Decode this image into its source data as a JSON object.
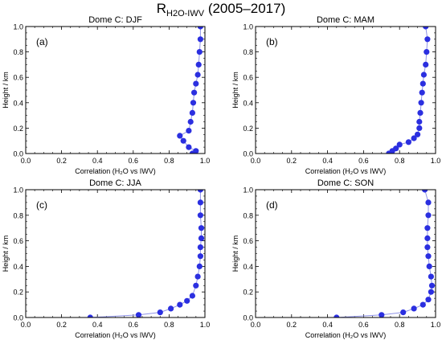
{
  "figure": {
    "title_main": "R",
    "title_sub": "H2O-IWV",
    "title_rest": " (2005–2017)"
  },
  "colors": {
    "marker": "#2b2fe0",
    "line": "#8f93e8",
    "axis": "#000000"
  },
  "chart_data": [
    {
      "type": "scatter",
      "title": "Dome C: DJF",
      "panel_label": "(a)",
      "xlabel": "Correlation (H₂O vs IWV)",
      "ylabel": "Height / km",
      "xlim": [
        0.0,
        1.0
      ],
      "ylim": [
        0.0,
        1.0
      ],
      "xticks": [
        "0.0",
        "0.2",
        "0.4",
        "0.6",
        "0.8",
        "1.0"
      ],
      "yticks": [
        "0.0",
        "0.2",
        "0.4",
        "0.6",
        "0.8",
        "1.0"
      ],
      "grid": false,
      "points": [
        [
          0.93,
          0.0
        ],
        [
          0.95,
          0.02
        ],
        [
          0.91,
          0.05
        ],
        [
          0.88,
          0.1
        ],
        [
          0.86,
          0.14
        ],
        [
          0.91,
          0.18
        ],
        [
          0.92,
          0.25
        ],
        [
          0.93,
          0.32
        ],
        [
          0.935,
          0.4
        ],
        [
          0.94,
          0.48
        ],
        [
          0.95,
          0.55
        ],
        [
          0.96,
          0.62
        ],
        [
          0.965,
          0.7
        ],
        [
          0.97,
          0.8
        ],
        [
          0.975,
          0.9
        ],
        [
          0.975,
          1.0
        ]
      ]
    },
    {
      "type": "scatter",
      "title": "Dome C: MAM",
      "panel_label": "(b)",
      "xlabel": "Correlation (H₂O vs IWV)",
      "ylabel": "Height / km",
      "xlim": [
        0.0,
        1.0
      ],
      "ylim": [
        0.0,
        1.0
      ],
      "xticks": [
        "0.0",
        "0.2",
        "0.4",
        "0.6",
        "0.8",
        "1.0"
      ],
      "yticks": [
        "0.0",
        "0.2",
        "0.4",
        "0.6",
        "0.8",
        "1.0"
      ],
      "grid": false,
      "points": [
        [
          0.74,
          0.0
        ],
        [
          0.76,
          0.02
        ],
        [
          0.78,
          0.04
        ],
        [
          0.8,
          0.07
        ],
        [
          0.85,
          0.09
        ],
        [
          0.88,
          0.12
        ],
        [
          0.9,
          0.15
        ],
        [
          0.91,
          0.2
        ],
        [
          0.91,
          0.25
        ],
        [
          0.915,
          0.32
        ],
        [
          0.92,
          0.4
        ],
        [
          0.925,
          0.48
        ],
        [
          0.93,
          0.55
        ],
        [
          0.935,
          0.62
        ],
        [
          0.945,
          0.7
        ],
        [
          0.95,
          0.8
        ],
        [
          0.955,
          0.9
        ],
        [
          0.945,
          1.0
        ]
      ]
    },
    {
      "type": "scatter",
      "title": "Dome C: JJA",
      "panel_label": "(c)",
      "xlabel": "Correlation (H₂O vs IWV)",
      "ylabel": "Height / km",
      "xlim": [
        0.0,
        1.0
      ],
      "ylim": [
        0.0,
        1.0
      ],
      "xticks": [
        "0.0",
        "0.2",
        "0.4",
        "0.6",
        "0.8",
        "1.0"
      ],
      "yticks": [
        "0.0",
        "0.2",
        "0.4",
        "0.6",
        "0.8",
        "1.0"
      ],
      "grid": false,
      "points": [
        [
          0.36,
          0.0
        ],
        [
          0.63,
          0.02
        ],
        [
          0.75,
          0.04
        ],
        [
          0.81,
          0.07
        ],
        [
          0.86,
          0.1
        ],
        [
          0.9,
          0.13
        ],
        [
          0.93,
          0.17
        ],
        [
          0.95,
          0.25
        ],
        [
          0.96,
          0.32
        ],
        [
          0.97,
          0.4
        ],
        [
          0.975,
          0.48
        ],
        [
          0.975,
          0.55
        ],
        [
          0.98,
          0.62
        ],
        [
          0.98,
          0.7
        ],
        [
          0.975,
          0.8
        ],
        [
          0.975,
          0.9
        ],
        [
          0.975,
          1.0
        ]
      ]
    },
    {
      "type": "scatter",
      "title": "Dome C: SON",
      "panel_label": "(d)",
      "xlabel": "Correlation (H₂O vs IWV)",
      "ylabel": "Height / km",
      "xlim": [
        0.0,
        1.0
      ],
      "ylim": [
        0.0,
        1.0
      ],
      "xticks": [
        "0.0",
        "0.2",
        "0.4",
        "0.6",
        "0.8",
        "1.0"
      ],
      "yticks": [
        "0.0",
        "0.2",
        "0.4",
        "0.6",
        "0.8",
        "1.0"
      ],
      "grid": false,
      "points": [
        [
          0.45,
          0.0
        ],
        [
          0.7,
          0.02
        ],
        [
          0.82,
          0.04
        ],
        [
          0.88,
          0.07
        ],
        [
          0.93,
          0.1
        ],
        [
          0.96,
          0.14
        ],
        [
          0.975,
          0.2
        ],
        [
          0.98,
          0.25
        ],
        [
          0.975,
          0.32
        ],
        [
          0.965,
          0.4
        ],
        [
          0.96,
          0.48
        ],
        [
          0.955,
          0.55
        ],
        [
          0.955,
          0.62
        ],
        [
          0.955,
          0.7
        ],
        [
          0.96,
          0.8
        ],
        [
          0.96,
          0.9
        ],
        [
          0.94,
          1.0
        ]
      ]
    }
  ]
}
